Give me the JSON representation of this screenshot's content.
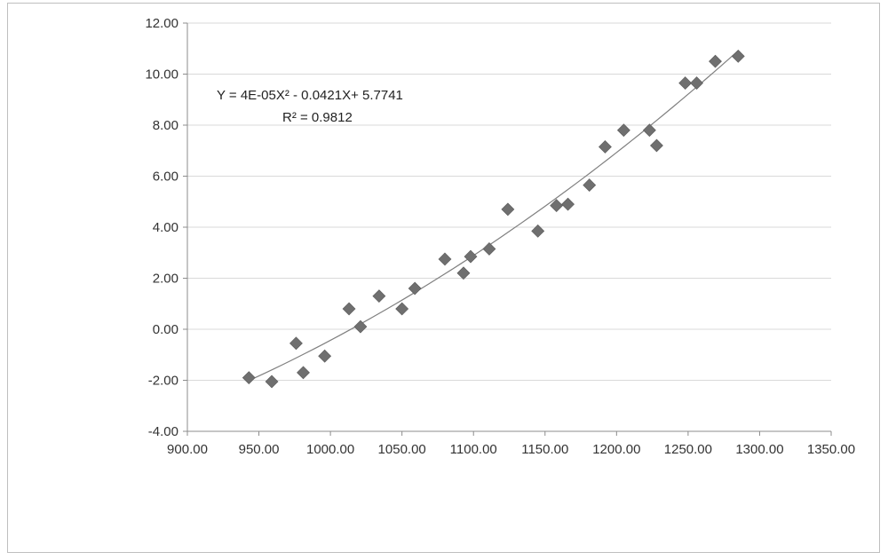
{
  "chart_data": {
    "type": "scatter",
    "title": "",
    "xlabel": "",
    "ylabel": "",
    "xlim": [
      900,
      1350
    ],
    "ylim": [
      -4,
      12
    ],
    "x_ticks": [
      900,
      950,
      1000,
      1050,
      1100,
      1150,
      1200,
      1250,
      1300,
      1350
    ],
    "y_ticks": [
      -4,
      -2,
      0,
      2,
      4,
      6,
      8,
      10,
      12
    ],
    "x_tick_labels": [
      "900.00",
      "950.00",
      "1000.00",
      "1050.00",
      "1100.00",
      "1150.00",
      "1200.00",
      "1250.00",
      "1300.00",
      "1350.00"
    ],
    "y_tick_labels": [
      "-4.00",
      "-2.00",
      "0.00",
      "2.00",
      "4.00",
      "6.00",
      "8.00",
      "10.00",
      "12.00"
    ],
    "grid": "horizontal",
    "legend": "none",
    "marker": "diamond",
    "marker_color": "#6f6f6f",
    "trendline_color": "#7f7f7f",
    "gridline_color": "#d9d9d9",
    "series": [
      {
        "x": [
          943,
          959,
          976,
          981,
          996,
          1013,
          1021,
          1034,
          1050,
          1059,
          1080,
          1093,
          1098,
          1111,
          1124,
          1145,
          1158,
          1166,
          1181,
          1192,
          1205,
          1223,
          1228,
          1248,
          1256,
          1269,
          1285
        ],
        "y": [
          -1.9,
          -2.05,
          -0.55,
          -1.7,
          -1.05,
          0.8,
          0.1,
          1.3,
          0.8,
          1.6,
          2.75,
          2.2,
          2.85,
          3.15,
          4.7,
          3.85,
          4.85,
          4.9,
          5.65,
          7.15,
          7.8,
          7.8,
          7.2,
          9.65,
          9.65,
          10.5,
          10.7
        ]
      }
    ],
    "trendline": {
      "type": "polynomial",
      "order": 2,
      "x_range": [
        943,
        1285
      ],
      "equation_label": "Y = 4E-05X² - 0.0421X+ 5.7741",
      "r2_label": "R² = 0.9812"
    }
  }
}
